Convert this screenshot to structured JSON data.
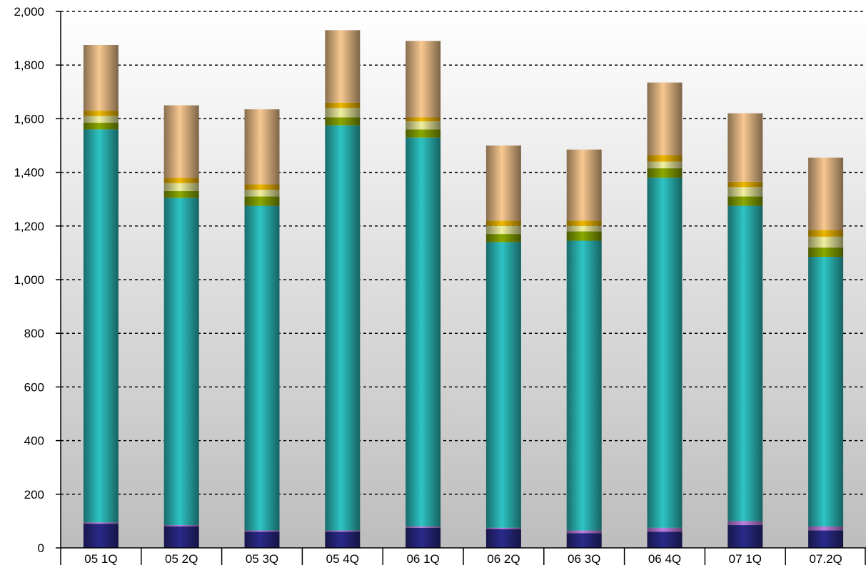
{
  "chart_data": {
    "type": "bar",
    "stacked": true,
    "title": "",
    "xlabel": "",
    "ylabel": "",
    "ylim": [
      0,
      2000
    ],
    "yticks": [
      0,
      200,
      400,
      600,
      800,
      1000,
      1200,
      1400,
      1600,
      1800,
      2000
    ],
    "ytick_labels": [
      "0",
      "200",
      "400",
      "600",
      "800",
      "1,000",
      "1,200",
      "1,400",
      "1,600",
      "1,800",
      "2,000"
    ],
    "grid": "horizontal-dotted",
    "legend": "none",
    "categories": [
      "05 1Q",
      "05 2Q",
      "05 3Q",
      "05 4Q",
      "06 1Q",
      "06 2Q",
      "06 3Q",
      "06 4Q",
      "07 1Q",
      "07.2Q"
    ],
    "series": [
      {
        "color": "#2a2a8a",
        "values": [
          90,
          80,
          60,
          60,
          75,
          70,
          55,
          60,
          85,
          65
        ]
      },
      {
        "color": "#c080e0",
        "values": [
          5,
          5,
          5,
          5,
          5,
          5,
          10,
          15,
          15,
          15
        ]
      },
      {
        "color": "#2ec4c4",
        "values": [
          1465,
          1220,
          1210,
          1510,
          1450,
          1065,
          1080,
          1305,
          1175,
          1005
        ]
      },
      {
        "color": "#8aa800",
        "values": [
          25,
          25,
          35,
          30,
          30,
          30,
          35,
          35,
          35,
          35
        ]
      },
      {
        "color": "#f0f0a0",
        "values": [
          25,
          30,
          25,
          35,
          30,
          30,
          20,
          25,
          35,
          40
        ]
      },
      {
        "color": "#f0b800",
        "values": [
          20,
          20,
          20,
          20,
          15,
          20,
          20,
          25,
          20,
          25
        ]
      },
      {
        "color": "#f8c890",
        "values": [
          245,
          270,
          280,
          270,
          285,
          280,
          265,
          270,
          255,
          270
        ]
      }
    ]
  }
}
